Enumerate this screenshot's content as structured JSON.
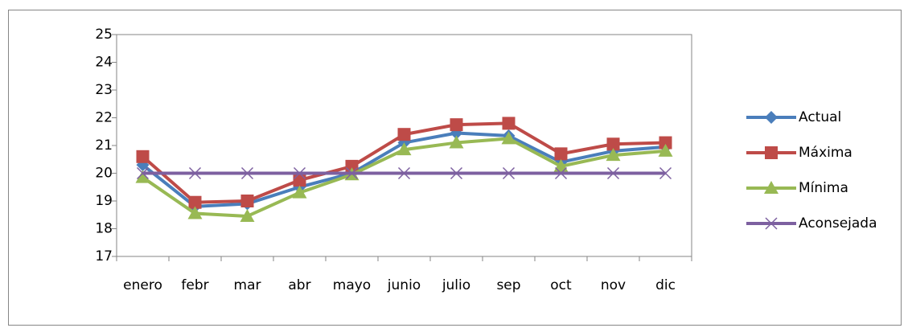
{
  "chart_data": {
    "type": "line",
    "categories": [
      "enero",
      "febr",
      "mar",
      "abr",
      "mayo",
      "junio",
      "julio",
      "sep",
      "oct",
      "nov",
      "dic"
    ],
    "series": [
      {
        "name": "Actual",
        "color": "#4a7ebb",
        "marker": "diamond",
        "values": [
          20.3,
          18.8,
          18.9,
          19.5,
          20.0,
          21.1,
          21.45,
          21.35,
          20.4,
          20.8,
          20.95
        ]
      },
      {
        "name": "Máxima",
        "color": "#be4b48",
        "marker": "square",
        "values": [
          20.6,
          18.95,
          19.0,
          19.75,
          20.25,
          21.4,
          21.75,
          21.8,
          20.7,
          21.05,
          21.1
        ]
      },
      {
        "name": "Mínima",
        "color": "#98b954",
        "marker": "triangle",
        "values": [
          19.85,
          18.55,
          18.45,
          19.3,
          19.95,
          20.85,
          21.1,
          21.25,
          20.25,
          20.65,
          20.8
        ]
      },
      {
        "name": "Aconsejada",
        "color": "#7d60a0",
        "marker": "x",
        "values": [
          20,
          20,
          20,
          20,
          20,
          20,
          20,
          20,
          20,
          20,
          20
        ]
      }
    ],
    "ylim": [
      17,
      25
    ],
    "yticks": [
      17,
      18,
      19,
      20,
      21,
      22,
      23,
      24,
      25
    ],
    "grid": false,
    "legend": "right"
  }
}
